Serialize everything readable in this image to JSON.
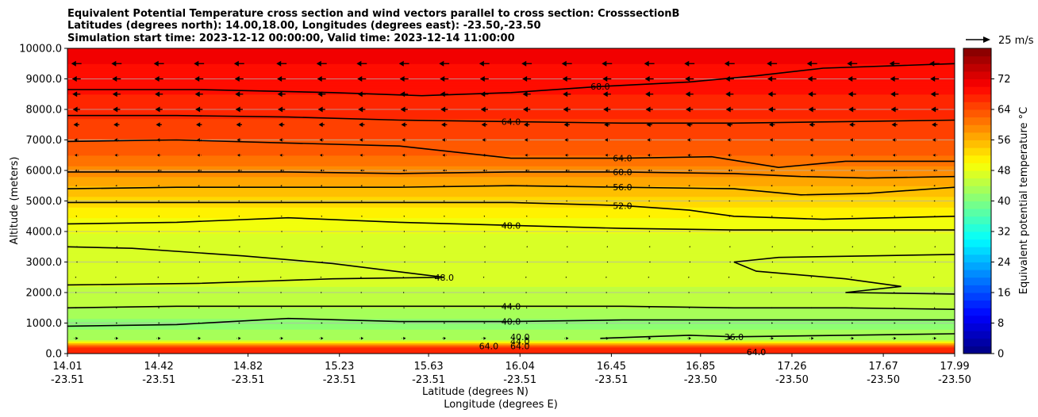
{
  "chart_data": {
    "type": "heatmap",
    "title_lines": [
      "Equivalent Potential Temperature cross section and wind vectors parallel to cross section: CrosssectionB",
      "Latitudes (degrees north): 14.00,18.00, Longitudes (degrees east): -23.50,-23.50",
      "Simulation start time: 2023-12-12 00:00:00, Valid time: 2023-12-14 11:00:00"
    ],
    "xlabel": "Latitude (degrees N)",
    "xlabel2": "Longitude (degrees E)",
    "ylabel": "Altitude (meters)",
    "xlim": [
      14.01,
      17.99
    ],
    "ylim": [
      0,
      10000
    ],
    "x_ticks": [
      {
        "lat": "14.01",
        "lon": "-23.51",
        "value": 14.01
      },
      {
        "lat": "14.42",
        "lon": "-23.51",
        "value": 14.42
      },
      {
        "lat": "14.82",
        "lon": "-23.51",
        "value": 14.82
      },
      {
        "lat": "15.23",
        "lon": "-23.51",
        "value": 15.23
      },
      {
        "lat": "15.63",
        "lon": "-23.51",
        "value": 15.63
      },
      {
        "lat": "16.04",
        "lon": "-23.51",
        "value": 16.04
      },
      {
        "lat": "16.45",
        "lon": "-23.51",
        "value": 16.45
      },
      {
        "lat": "16.85",
        "lon": "-23.50",
        "value": 16.85
      },
      {
        "lat": "17.26",
        "lon": "-23.50",
        "value": 17.26
      },
      {
        "lat": "17.67",
        "lon": "-23.50",
        "value": 17.67
      },
      {
        "lat": "17.99",
        "lon": "-23.50",
        "value": 17.99
      }
    ],
    "y_ticks": [
      {
        "label": "0.0",
        "value": 0
      },
      {
        "label": "1000.0",
        "value": 1000
      },
      {
        "label": "2000.0",
        "value": 2000
      },
      {
        "label": "3000.0",
        "value": 3000
      },
      {
        "label": "4000.0",
        "value": 4000
      },
      {
        "label": "5000.0",
        "value": 5000
      },
      {
        "label": "6000.0",
        "value": 6000
      },
      {
        "label": "7000.0",
        "value": 7000
      },
      {
        "label": "8000.0",
        "value": 8000
      },
      {
        "label": "9000.0",
        "value": 9000
      },
      {
        "label": "10000.0",
        "value": 10000
      }
    ],
    "grid": "horizontal",
    "colorbar": {
      "label": "Equivalent potential temperature °C",
      "range": [
        0,
        80
      ],
      "tick_values": [
        0,
        8,
        16,
        24,
        32,
        40,
        48,
        56,
        64,
        72
      ],
      "tick_labels": [
        "0",
        "8",
        "16",
        "24",
        "32",
        "40",
        "48",
        "56",
        "64",
        "72"
      ],
      "colormap": "jet"
    },
    "quiver_key": {
      "label": "25 m/s",
      "speed": 25
    },
    "theta_e_bands": [
      {
        "alt": 0,
        "value": 66
      },
      {
        "alt": 200,
        "value": 68
      },
      {
        "alt": 450,
        "value": 44
      },
      {
        "alt": 1000,
        "value": 41
      },
      {
        "alt": 1500,
        "value": 44
      },
      {
        "alt": 2200,
        "value": 46
      },
      {
        "alt": 3500,
        "value": 47
      },
      {
        "alt": 4200,
        "value": 48.5
      },
      {
        "alt": 5000,
        "value": 53
      },
      {
        "alt": 5800,
        "value": 58
      },
      {
        "alt": 6500,
        "value": 62
      },
      {
        "alt": 7500,
        "value": 65.5
      },
      {
        "alt": 8500,
        "value": 68
      },
      {
        "alt": 9500,
        "value": 70
      },
      {
        "alt": 10000,
        "value": 71
      }
    ],
    "contours": [
      {
        "value": 68.0,
        "label": "68.0",
        "points": [
          [
            14.01,
            8650
          ],
          [
            14.6,
            8650
          ],
          [
            15.2,
            8550
          ],
          [
            15.6,
            8450
          ],
          [
            16.0,
            8550
          ],
          [
            16.4,
            8750
          ],
          [
            16.8,
            8900
          ],
          [
            17.1,
            9100
          ],
          [
            17.4,
            9350
          ],
          [
            17.99,
            9500
          ]
        ]
      },
      {
        "value": 64.0,
        "label": "64.0",
        "points": [
          [
            14.01,
            7800
          ],
          [
            14.5,
            7800
          ],
          [
            15.0,
            7750
          ],
          [
            15.5,
            7650
          ],
          [
            16.0,
            7600
          ],
          [
            16.5,
            7550
          ],
          [
            17.0,
            7550
          ],
          [
            17.5,
            7600
          ],
          [
            17.99,
            7650
          ]
        ]
      },
      {
        "value": 64.0,
        "label": "64.0",
        "points": [
          [
            14.01,
            6950
          ],
          [
            14.5,
            7000
          ],
          [
            15.0,
            6900
          ],
          [
            15.5,
            6800
          ],
          [
            16.0,
            6400
          ],
          [
            16.5,
            6400
          ],
          [
            16.9,
            6450
          ],
          [
            17.2,
            6100
          ],
          [
            17.5,
            6300
          ],
          [
            17.99,
            6300
          ]
        ]
      },
      {
        "value": 60.0,
        "label": "60.0",
        "points": [
          [
            14.01,
            5950
          ],
          [
            14.5,
            5950
          ],
          [
            15.0,
            5950
          ],
          [
            15.5,
            5900
          ],
          [
            16.0,
            5950
          ],
          [
            16.5,
            5950
          ],
          [
            17.0,
            5900
          ],
          [
            17.3,
            5800
          ],
          [
            17.6,
            5750
          ],
          [
            17.99,
            5800
          ]
        ]
      },
      {
        "value": 56.0,
        "label": "56.0",
        "points": [
          [
            14.01,
            5400
          ],
          [
            14.5,
            5450
          ],
          [
            15.0,
            5450
          ],
          [
            15.5,
            5450
          ],
          [
            16.0,
            5500
          ],
          [
            16.5,
            5450
          ],
          [
            17.0,
            5400
          ],
          [
            17.3,
            5200
          ],
          [
            17.6,
            5250
          ],
          [
            17.99,
            5450
          ]
        ]
      },
      {
        "value": 52.0,
        "label": "52.0",
        "points": [
          [
            14.01,
            4950
          ],
          [
            14.5,
            4950
          ],
          [
            15.0,
            4950
          ],
          [
            15.5,
            4950
          ],
          [
            16.0,
            4950
          ],
          [
            16.5,
            4850
          ],
          [
            16.8,
            4700
          ],
          [
            17.0,
            4500
          ],
          [
            17.4,
            4400
          ],
          [
            17.99,
            4500
          ]
        ]
      },
      {
        "value": 48.0,
        "label": "48.0",
        "points": [
          [
            14.01,
            4250
          ],
          [
            14.5,
            4300
          ],
          [
            15.0,
            4450
          ],
          [
            15.5,
            4300
          ],
          [
            16.0,
            4200
          ],
          [
            16.5,
            4100
          ],
          [
            17.0,
            4050
          ],
          [
            17.5,
            4050
          ],
          [
            17.99,
            4050
          ]
        ]
      },
      {
        "value": 48.0,
        "label": "48.0",
        "points": [
          [
            14.01,
            3500
          ],
          [
            14.3,
            3450
          ],
          [
            14.8,
            3200
          ],
          [
            15.2,
            2950
          ],
          [
            15.7,
            2500
          ],
          [
            15.2,
            2450
          ],
          [
            14.6,
            2300
          ],
          [
            14.01,
            2250
          ]
        ]
      },
      {
        "value": 48.0,
        "label": "",
        "points": [
          [
            17.99,
            3250
          ],
          [
            17.6,
            3200
          ],
          [
            17.2,
            3150
          ],
          [
            17.0,
            3000
          ],
          [
            17.1,
            2700
          ],
          [
            17.5,
            2450
          ],
          [
            17.75,
            2200
          ],
          [
            17.5,
            2000
          ],
          [
            17.99,
            1950
          ]
        ]
      },
      {
        "value": 44.0,
        "label": "44.0",
        "points": [
          [
            14.01,
            1500
          ],
          [
            14.5,
            1550
          ],
          [
            15.0,
            1550
          ],
          [
            15.5,
            1550
          ],
          [
            16.0,
            1550
          ],
          [
            16.5,
            1550
          ],
          [
            17.0,
            1500
          ],
          [
            17.5,
            1500
          ],
          [
            17.99,
            1450
          ]
        ]
      },
      {
        "value": 40.0,
        "label": "40.0",
        "points": [
          [
            14.01,
            900
          ],
          [
            14.5,
            950
          ],
          [
            15.0,
            1150
          ],
          [
            15.5,
            1050
          ],
          [
            16.0,
            1050
          ],
          [
            16.5,
            1100
          ],
          [
            17.0,
            1100
          ],
          [
            17.5,
            1100
          ],
          [
            17.99,
            1100
          ]
        ]
      },
      {
        "value": 36.0,
        "label": "36.0",
        "points": [
          [
            16.4,
            500
          ],
          [
            16.6,
            550
          ],
          [
            16.8,
            600
          ],
          [
            17.0,
            550
          ],
          [
            17.5,
            600
          ],
          [
            17.99,
            650
          ]
        ]
      }
    ],
    "surface_contour_labels": [
      {
        "label": "40.0",
        "x": 16.04,
        "alt": 550
      },
      {
        "label": "44.0",
        "x": 16.04,
        "alt": 400
      },
      {
        "label": "64.0",
        "x": 16.04,
        "alt": 250
      },
      {
        "label": "64.0",
        "x": 15.9,
        "alt": 250
      },
      {
        "label": "64.0",
        "x": 17.1,
        "alt": 50
      }
    ],
    "wind_rows": [
      {
        "alt": 9500,
        "u": -14
      },
      {
        "alt": 9000,
        "u": -12
      },
      {
        "alt": 8500,
        "u": -11
      },
      {
        "alt": 8000,
        "u": -10
      },
      {
        "alt": 7500,
        "u": -8
      },
      {
        "alt": 7000,
        "u": -6
      },
      {
        "alt": 6500,
        "u": -5
      },
      {
        "alt": 6000,
        "u": -4
      },
      {
        "alt": 5500,
        "u": -3
      },
      {
        "alt": 5000,
        "u": -2.5
      },
      {
        "alt": 4500,
        "u": -2
      },
      {
        "alt": 4000,
        "u": -1.5
      },
      {
        "alt": 3500,
        "u": -1
      },
      {
        "alt": 3000,
        "u": -0.5
      },
      {
        "alt": 2500,
        "u": 0.3
      },
      {
        "alt": 2000,
        "u": 1
      },
      {
        "alt": 1500,
        "u": 2
      },
      {
        "alt": 1000,
        "u": 3
      },
      {
        "alt": 500,
        "u": 5
      }
    ],
    "wind_x": [
      14.05,
      14.23,
      14.42,
      14.6,
      14.78,
      14.97,
      15.15,
      15.33,
      15.52,
      15.7,
      15.88,
      16.07,
      16.25,
      16.43,
      16.62,
      16.8,
      16.98,
      17.17,
      17.35,
      17.53,
      17.72,
      17.9
    ]
  }
}
